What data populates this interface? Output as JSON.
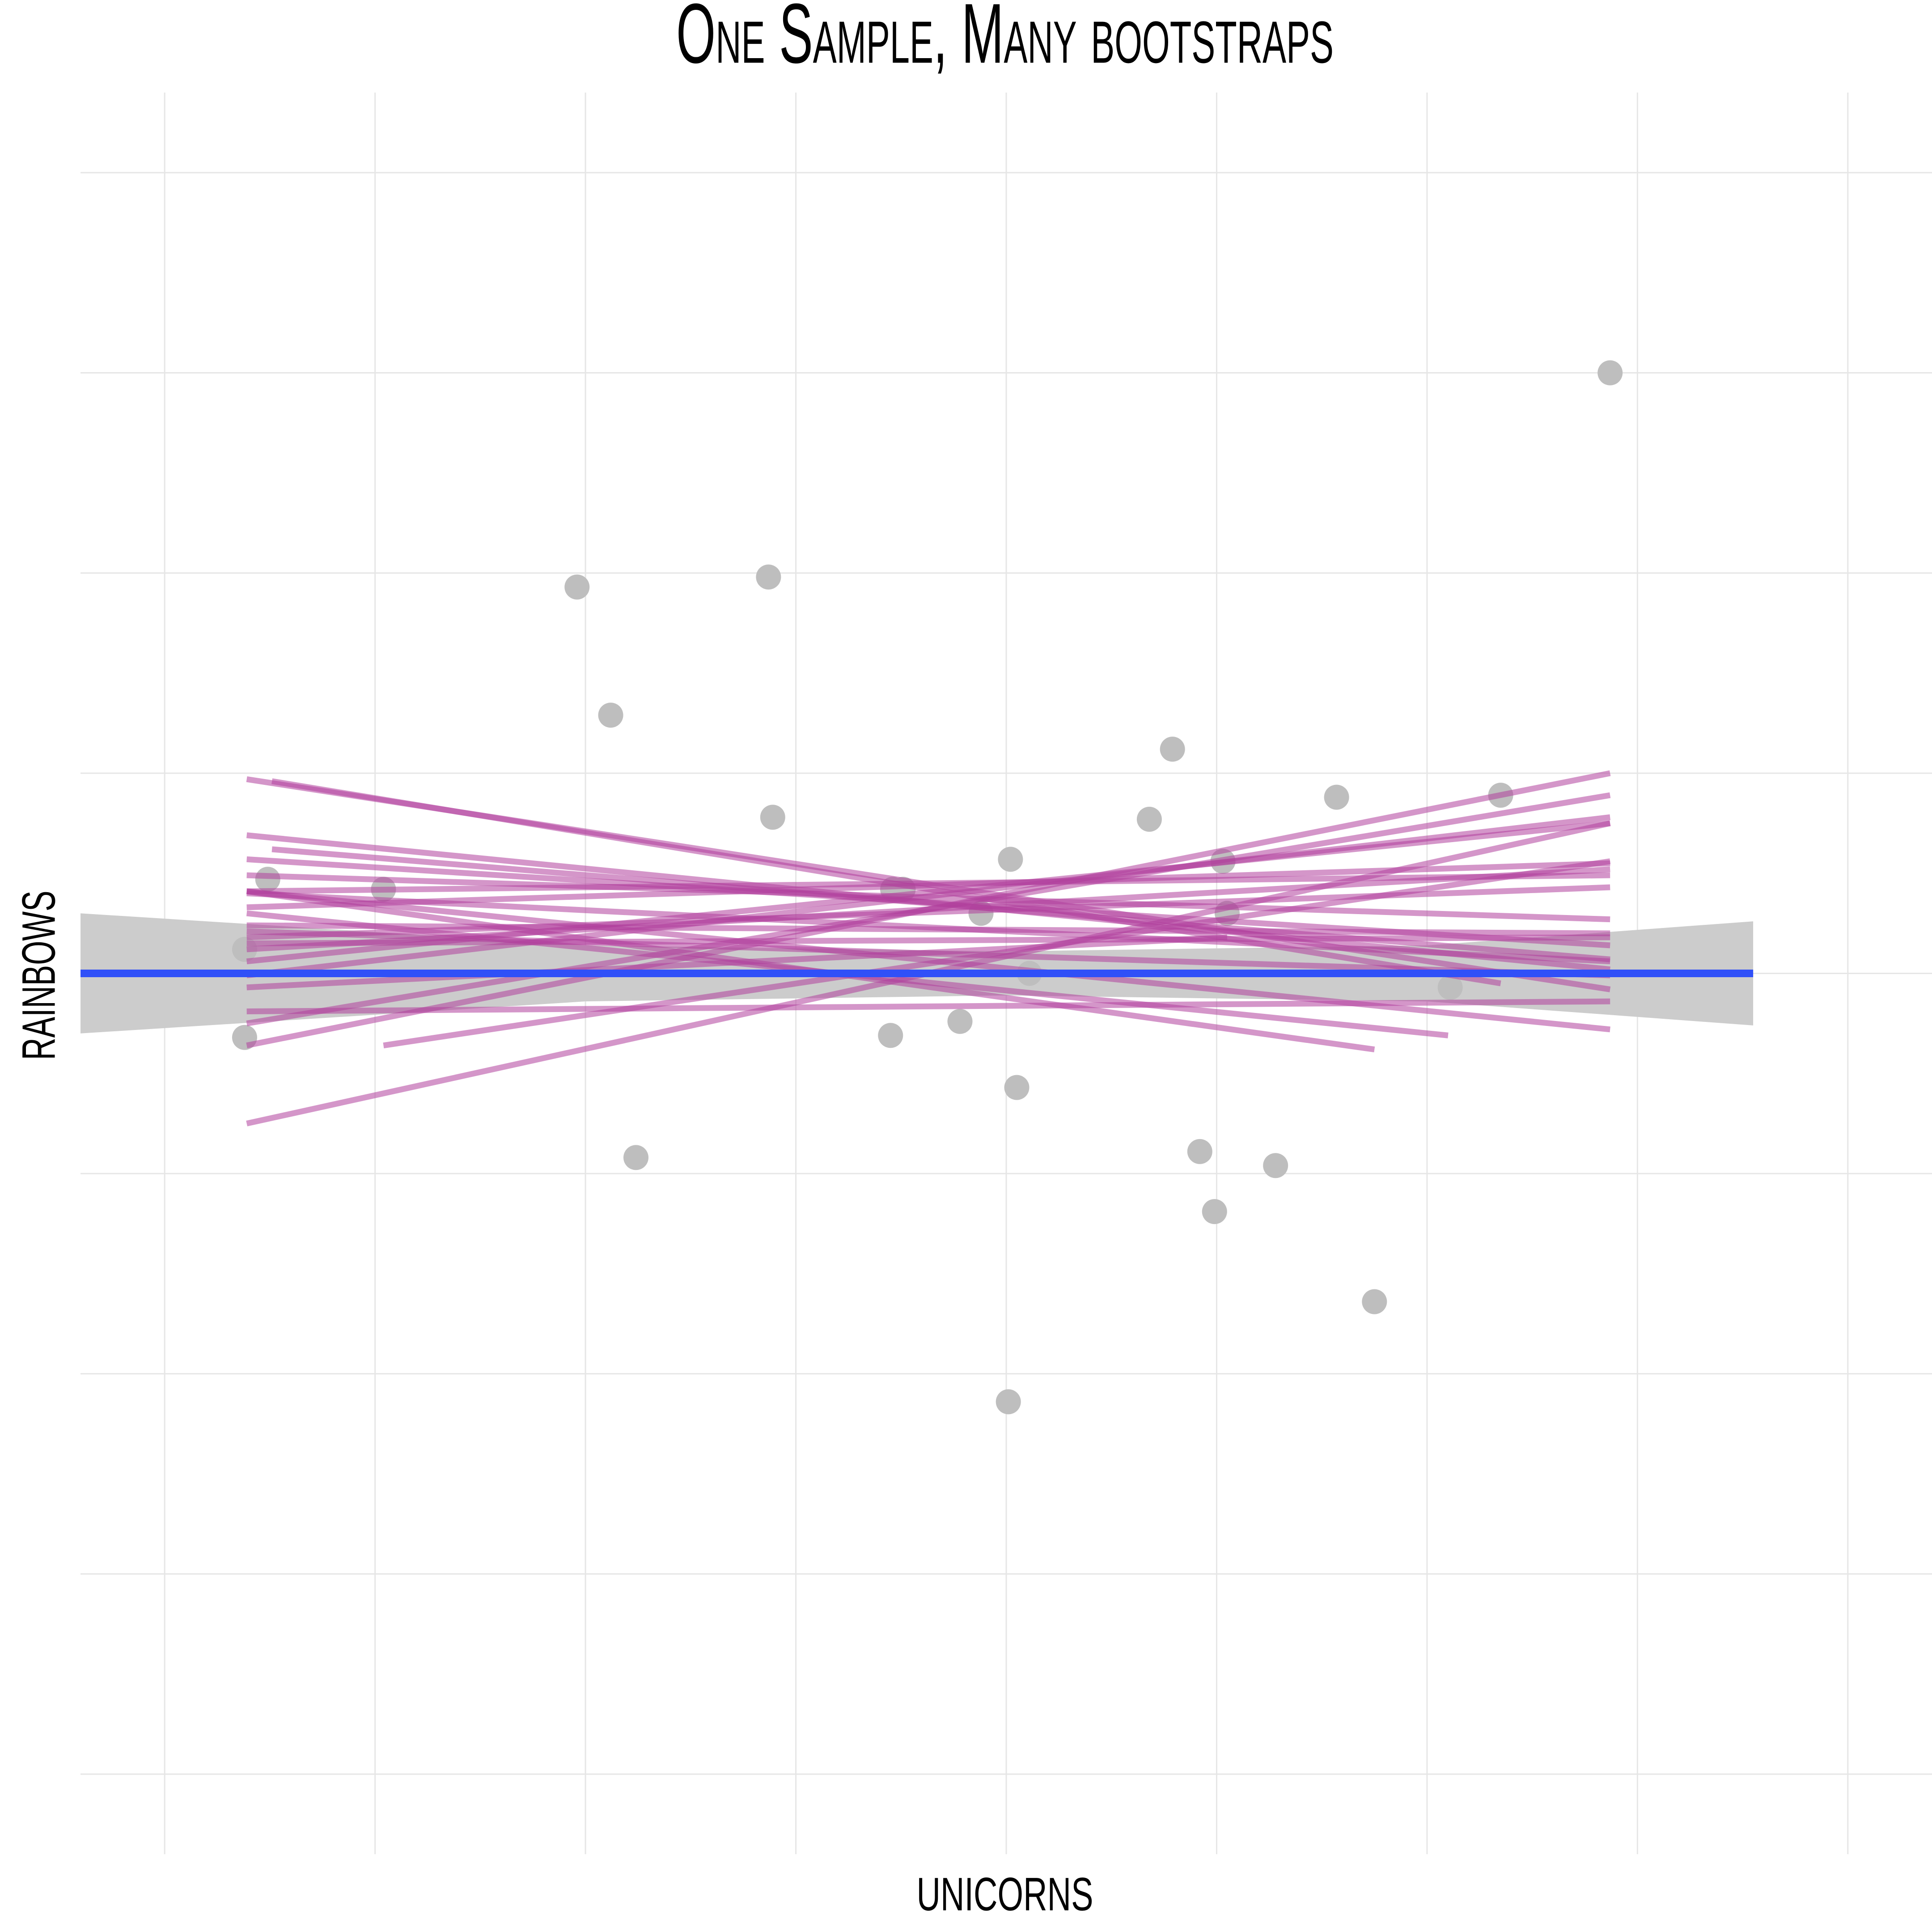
{
  "chart_data": {
    "type": "scatter",
    "title": "One Sample, Many bootstraps",
    "x_label": "unicorns",
    "y_label": "rainbows",
    "xlim": [
      -4.4,
      4.4
    ],
    "ylim": [
      -4.4,
      4.4
    ],
    "xticks": [
      -4,
      -3,
      -2,
      -1,
      0,
      1,
      2,
      3,
      4
    ],
    "yticks": [
      -4,
      -3,
      -2,
      -1,
      0,
      1,
      2,
      3,
      4
    ],
    "grid": true,
    "point_color": "#bebebe",
    "x": [
      -3.62,
      -3.62,
      -3.51,
      -2.96,
      -2.04,
      -1.88,
      -1.76,
      -1.13,
      -1.11,
      -0.55,
      -0.54,
      -0.49,
      -0.22,
      -0.12,
      0.01,
      0.02,
      0.05,
      0.11,
      0.68,
      0.79,
      0.92,
      0.99,
      1.03,
      1.05,
      1.28,
      1.57,
      1.75,
      2.11,
      2.35,
      2.87
    ],
    "y": [
      0.12,
      -0.32,
      0.47,
      0.42,
      1.93,
      1.29,
      -0.92,
      1.98,
      0.78,
      -0.31,
      0.42,
      0.42,
      -0.24,
      0.3,
      -2.14,
      0.57,
      -0.57,
      0.0,
      0.77,
      1.12,
      -0.89,
      -1.19,
      0.56,
      0.3,
      -0.96,
      0.88,
      -1.64,
      -0.07,
      0.89,
      3.0
    ],
    "band_color": "#cccccc",
    "band": {
      "x": [
        -4.4,
        -2,
        0,
        2,
        3.55
      ],
      "lower": [
        -0.3,
        -0.14,
        -0.11,
        -0.14,
        -0.26
      ],
      "upper": [
        0.3,
        0.14,
        0.11,
        0.14,
        0.26
      ]
    },
    "bootstrap_color": "#b0409c",
    "bootstraps": [
      {
        "x": [
          -3.61,
          2.87
        ],
        "y": [
          0.97,
          -0.08
        ]
      },
      {
        "x": [
          -3.49,
          2.35
        ],
        "y": [
          0.96,
          -0.05
        ]
      },
      {
        "x": [
          -3.61,
          2.87
        ],
        "y": [
          0.69,
          0.02
        ]
      },
      {
        "x": [
          -3.49,
          2.87
        ],
        "y": [
          0.62,
          0.07
        ]
      },
      {
        "x": [
          -3.61,
          2.87
        ],
        "y": [
          0.57,
          0.14
        ]
      },
      {
        "x": [
          -3.61,
          2.87
        ],
        "y": [
          0.49,
          0.27
        ]
      },
      {
        "x": [
          -3.61,
          2.87
        ],
        "y": [
          0.41,
          0.49
        ]
      },
      {
        "x": [
          -3.61,
          2.87
        ],
        "y": [
          0.33,
          0.55
        ]
      },
      {
        "x": [
          -3.61,
          2.87
        ],
        "y": [
          0.24,
          0.2
        ]
      },
      {
        "x": [
          -3.61,
          2.87
        ],
        "y": [
          0.18,
          0.43
        ]
      },
      {
        "x": [
          -3.61,
          2.87
        ],
        "y": [
          0.12,
          0.52
        ]
      },
      {
        "x": [
          -3.61,
          2.87
        ],
        "y": [
          0.06,
          0.75
        ]
      },
      {
        "x": [
          -3.61,
          2.87
        ],
        "y": [
          -0.01,
          0.78
        ]
      },
      {
        "x": [
          -3.61,
          2.87
        ],
        "y": [
          -0.25,
          0.89
        ]
      },
      {
        "x": [
          -3.61,
          2.87
        ],
        "y": [
          -0.36,
          1.0
        ]
      },
      {
        "x": [
          -3.61,
          2.87
        ],
        "y": [
          -0.75,
          0.75
        ]
      },
      {
        "x": [
          -2.96,
          2.87
        ],
        "y": [
          -0.36,
          0.56
        ]
      },
      {
        "x": [
          -3.61,
          2.87
        ],
        "y": [
          -0.19,
          -0.14
        ]
      },
      {
        "x": [
          -3.61,
          1.75
        ],
        "y": [
          0.41,
          -0.38
        ]
      },
      {
        "x": [
          -3.61,
          2.1
        ],
        "y": [
          0.3,
          -0.31
        ]
      },
      {
        "x": [
          -3.61,
          2.87
        ],
        "y": [
          0.15,
          0.18
        ]
      },
      {
        "x": [
          -3.61,
          1.05
        ],
        "y": [
          -0.07,
          0.18
        ]
      },
      {
        "x": [
          -3.61,
          2.87
        ],
        "y": [
          0.41,
          -0.28
        ]
      },
      {
        "x": [
          -3.61,
          2.87
        ],
        "y": [
          0.21,
          -0.01
        ]
      },
      {
        "x": [
          -3.61,
          2.87
        ],
        "y": [
          0.4,
          0.06
        ]
      }
    ],
    "fit_color": "#3050f8",
    "fit": {
      "x": [
        -4.4,
        3.55
      ],
      "y": [
        0,
        0
      ]
    }
  }
}
